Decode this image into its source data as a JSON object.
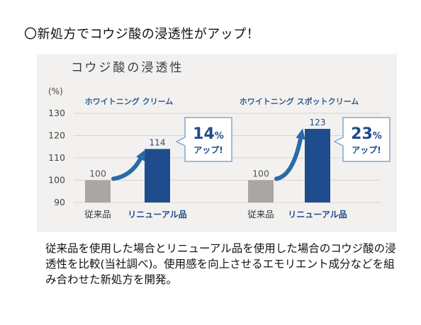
{
  "headline": "〇新処方でコウジ酸の浸透性がアップ！",
  "chart_data": {
    "type": "bar",
    "title": "コウジ酸の浸透性",
    "yunit": "(%)",
    "ylim": [
      90,
      130
    ],
    "yticks": [
      90,
      100,
      110,
      120,
      130
    ],
    "grid": true,
    "colors": {
      "conventional": "#aba6a3",
      "renewal": "#1f4c8c",
      "accent": "#2a6aa9",
      "title": "#2f5c8f"
    },
    "panels": [
      {
        "product": "ホワイトニング クリーム",
        "categories": [
          "従来品",
          "リニューアル品"
        ],
        "values": [
          100,
          114
        ],
        "badge_value": "14",
        "badge_unit": "%",
        "badge_text": "アップ!"
      },
      {
        "product": "ホワイトニング スポットクリーム",
        "categories": [
          "従来品",
          "リニューアル品"
        ],
        "values": [
          100,
          123
        ],
        "badge_value": "23",
        "badge_unit": "%",
        "badge_text": "アップ!"
      }
    ]
  },
  "caption": "従来品を使用した場合とリニューアル品を使用した場合のコウジ酸の浸透性を比較(当社調べ)。使用感を向上させるエモリエント成分などを組み合わせた新処方を開発。"
}
